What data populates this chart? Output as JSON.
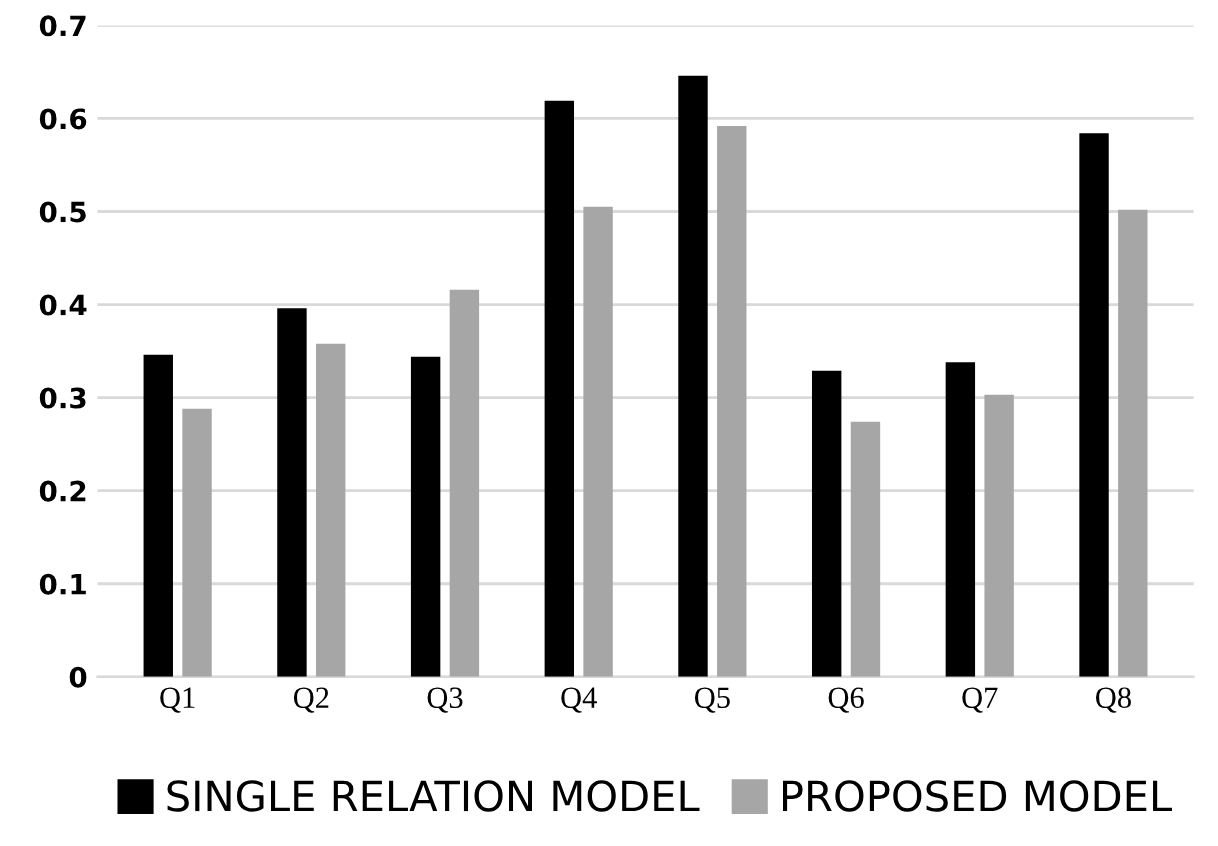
{
  "chart_data": {
    "type": "bar",
    "categories": [
      "Q1",
      "Q2",
      "Q3",
      "Q4",
      "Q5",
      "Q6",
      "Q7",
      "Q8"
    ],
    "series": [
      {
        "name": "SINGLE RELATION MODEL",
        "color": "#000000",
        "values": [
          0.346,
          0.396,
          0.344,
          0.619,
          0.646,
          0.329,
          0.338,
          0.584
        ]
      },
      {
        "name": "PROPOSED MODEL",
        "color": "#a6a6a6",
        "values": [
          0.288,
          0.358,
          0.416,
          0.505,
          0.592,
          0.274,
          0.303,
          0.502
        ]
      }
    ],
    "ylim": [
      0,
      0.7
    ],
    "yticks": [
      0,
      0.1,
      0.2,
      0.3,
      0.4,
      0.5,
      0.6,
      0.7
    ],
    "grid": "y",
    "legend": "bottom"
  }
}
